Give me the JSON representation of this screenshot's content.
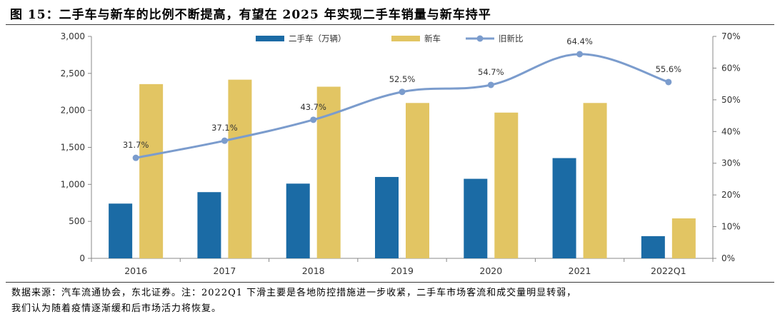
{
  "figure": {
    "title": "图 15：二手车与新车的比例不断提高，有望在 2025 年实现二手车销量与新车持平"
  },
  "note": {
    "line1": "数据来源：汽车流通协会，东北证券。注：2022Q1 下滑主要是各地防控措施进一步收紧，二手车市场客流和成交量明显转弱，",
    "line2": "我们认为随着疫情逐渐缓和后市场活力将恢复。"
  },
  "colors": {
    "used": "#1b6ba5",
    "new": "#e2c563",
    "ratio": "#7b9ccd"
  },
  "chart_data": {
    "type": "bar",
    "categories": [
      "2016",
      "2017",
      "2018",
      "2019",
      "2020",
      "2021",
      "2022Q1"
    ],
    "series": [
      {
        "name": "二手车（万辆）",
        "type": "bar",
        "axis": "left",
        "values": [
          740,
          895,
          1010,
          1100,
          1075,
          1355,
          300
        ]
      },
      {
        "name": "新车",
        "type": "bar",
        "axis": "left",
        "values": [
          2355,
          2415,
          2320,
          2100,
          1970,
          2100,
          540
        ]
      },
      {
        "name": "旧新比",
        "type": "line",
        "axis": "right",
        "values": [
          31.7,
          37.1,
          43.7,
          52.5,
          54.7,
          64.4,
          55.6
        ],
        "labels": [
          "31.7%",
          "37.1%",
          "43.7%",
          "52.5%",
          "54.7%",
          "64.4%",
          "55.6%"
        ]
      }
    ],
    "y_left": {
      "min": 0,
      "max": 3000,
      "ticks": [
        "0",
        "500",
        "1,000",
        "1,500",
        "2,000",
        "2,500",
        "3,000"
      ]
    },
    "y_right": {
      "min": 0,
      "max": 70,
      "ticks": [
        "0%",
        "10%",
        "20%",
        "30%",
        "40%",
        "50%",
        "60%",
        "70%"
      ]
    },
    "legend": "top-center",
    "grid": false
  }
}
